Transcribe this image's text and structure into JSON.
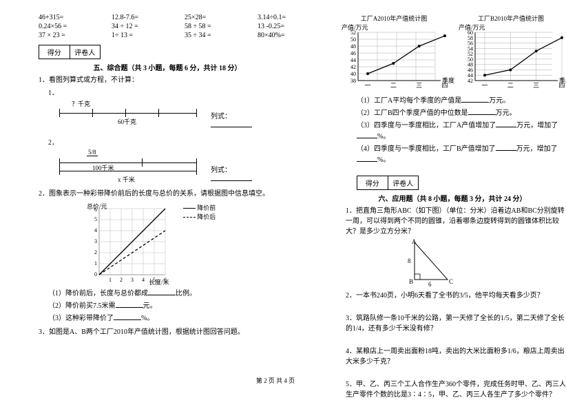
{
  "arith": {
    "r1": [
      "46+315=",
      "12.8-7.6=",
      "25×28=",
      "3.14÷0.1="
    ],
    "r2": [
      "0.24×56 =",
      "34 ÷ 12 =",
      "58 ÷ 58 =",
      "13 -0.25="
    ],
    "r3": [
      "37 × 23 =",
      "1÷ 13 =",
      "35 ÷ 34 =",
      "80×40%="
    ]
  },
  "score": {
    "a": "得分",
    "b": "评卷人"
  },
  "sec5": {
    "title": "五、综合题（共 3 小题，每题 6 分，共计 18 分）",
    "q1": "1．看图列算式或方程，不计算：",
    "q1_1": "1．",
    "d1_top": "？千克",
    "d1_bottom": "60千克",
    "d1_side": "列式：",
    "q1_2": "2．",
    "d2_frac": "5/8",
    "d2_mid": "100千米",
    "d2_bottom": "x 千米",
    "d2_side": "列式：",
    "q2": "2．图象表示一种彩带降价前后的长度与总价的关系，请根据图中信息填空。",
    "chart_ylabel": "总价/元",
    "chart_xlabel": "长度/米",
    "legend_a": "降价前",
    "legend_b": "降价后",
    "q2_1": "（1）降价前后，长度与总价都成",
    "q2_1b": "比例。",
    "q2_2": "（2）降价前买7.5米需",
    "q2_2b": "元。",
    "q2_3": "（3）这种彩带降价了",
    "q2_3b": "%。",
    "q3": "3．如图是A、B两个工厂2010年产值统计图，根据统计图回答问题。"
  },
  "factoryCharts": {
    "titleA": "工厂A2010年产值统计图",
    "titleB": "工厂B2010年产值统计图",
    "ylabel": "产值/万元",
    "xticks": [
      "一",
      "二",
      "三",
      "四"
    ],
    "xaxis": "季度",
    "A": {
      "yticks": [
        38,
        40,
        42,
        44,
        46,
        48,
        50,
        52
      ],
      "vals": [
        40,
        43,
        48,
        51
      ]
    },
    "B": {
      "yticks": [
        42,
        44,
        46,
        48,
        50,
        52,
        54,
        56,
        58,
        60
      ],
      "vals": [
        44,
        46,
        53,
        58
      ]
    }
  },
  "fq": {
    "l1": "（1）工厂A平均每个季度的产值是",
    "l1b": "万元。",
    "l2": "（2）工厂B四个季度产值的中位数是",
    "l2b": "万元。",
    "l3": "（3）四季度与一季度相比，工厂A产值增加了",
    "l3b": "万元，增加了",
    "l3c": "%。",
    "l4": "（4）四季度与一季度相比，工厂B产值增加了",
    "l4b": "万元，增加了",
    "l4c": "%。"
  },
  "sec6": {
    "title": "六、应用题（共 8 小题，每题 3 分，共计 24 分）",
    "q1": "1．把直角三角形ABC（如下图）（单位：分米）沿着边AB和BC分别旋转一周，可以得到两个不同的圆锥，沿着哪条边旋转得到的圆锥体积比较大？是多少立方分米？",
    "tri": {
      "A": "A",
      "B": "B",
      "C": "C",
      "ab": "8",
      "bc": "6"
    },
    "q2": "2．一本书240页，小明6天看了全书的3/5，他平均每天看多少页？",
    "q3": "3．筑路队修一条10千米的公路，第一天修了全长的1/5，第二天修了全长的1/4，还有多少千米没有修？",
    "q4": "4．某粮店上一周卖出面粉18吨，卖出的大米比面粉多1/6，粮店上周卖出大米多少千克？",
    "q5": "5．甲、乙、丙三个工人合作生产360个零件，完成任务时甲、乙、丙三人生产零件个数的比是3∶4∶5，甲、乙、丙三人各生产了多少个零件？"
  },
  "footer": "第 2 页 共 4 页",
  "style": {
    "grid": "#7a7a7a",
    "lineA": "#000",
    "dash": "4,3"
  }
}
